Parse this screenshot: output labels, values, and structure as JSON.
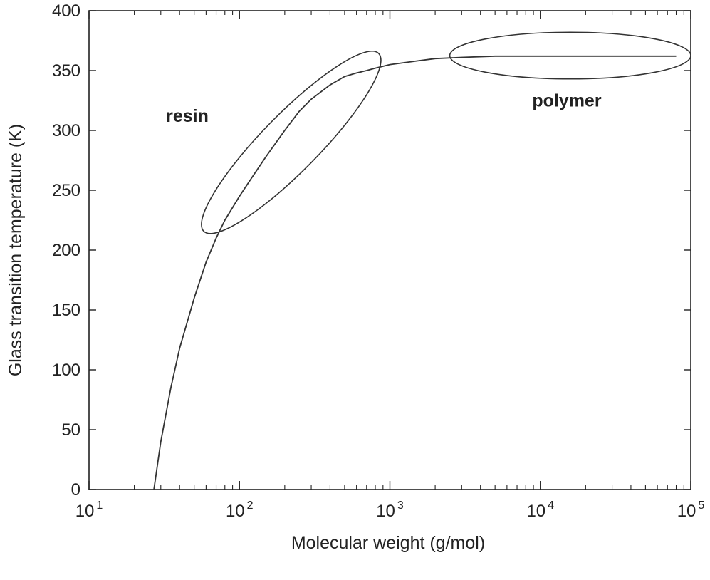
{
  "chart_data": {
    "type": "line",
    "title": "",
    "xlabel": "Molecular weight (g/mol)",
    "ylabel": "Glass transition temperature (K)",
    "x_scale": "log",
    "xlim": [
      10,
      100000
    ],
    "ylim": [
      0,
      400
    ],
    "grid": false,
    "legend": "none",
    "x_ticks": [
      {
        "base": "10",
        "exp": "1"
      },
      {
        "base": "10",
        "exp": "2"
      },
      {
        "base": "10",
        "exp": "3"
      },
      {
        "base": "10",
        "exp": "4"
      },
      {
        "base": "10",
        "exp": "5"
      }
    ],
    "y_ticks": [
      "0",
      "50",
      "100",
      "150",
      "200",
      "250",
      "300",
      "350",
      "400"
    ],
    "series": [
      {
        "x": [
          27,
          30,
          35,
          40,
          50,
          60,
          70,
          80,
          100,
          120,
          150,
          200,
          250,
          300,
          400,
          500,
          600,
          700,
          800,
          1000,
          1500,
          2000,
          3000,
          5000,
          10000,
          20000,
          50000,
          80000
        ],
        "y": [
          0,
          40,
          85,
          118,
          160,
          190,
          210,
          225,
          245,
          260,
          278,
          300,
          316,
          326,
          338,
          345,
          348,
          350,
          352,
          355,
          358,
          360,
          361,
          362,
          362,
          362,
          362,
          362
        ]
      }
    ],
    "annotations": [
      {
        "text": "resin",
        "x": 45,
        "y": 307
      },
      {
        "text": "polymer",
        "x": 15000,
        "y": 320
      }
    ],
    "ellipses": [
      {
        "label": "resin",
        "x_range": [
          65,
          750
        ],
        "y_range": [
          222,
          358
        ]
      },
      {
        "label": "polymer",
        "x_range": [
          2500,
          100000
        ],
        "y_range": [
          343,
          382
        ]
      }
    ],
    "colors": {
      "line": "#333333",
      "axis": "#222222",
      "background": "#ffffff"
    }
  }
}
